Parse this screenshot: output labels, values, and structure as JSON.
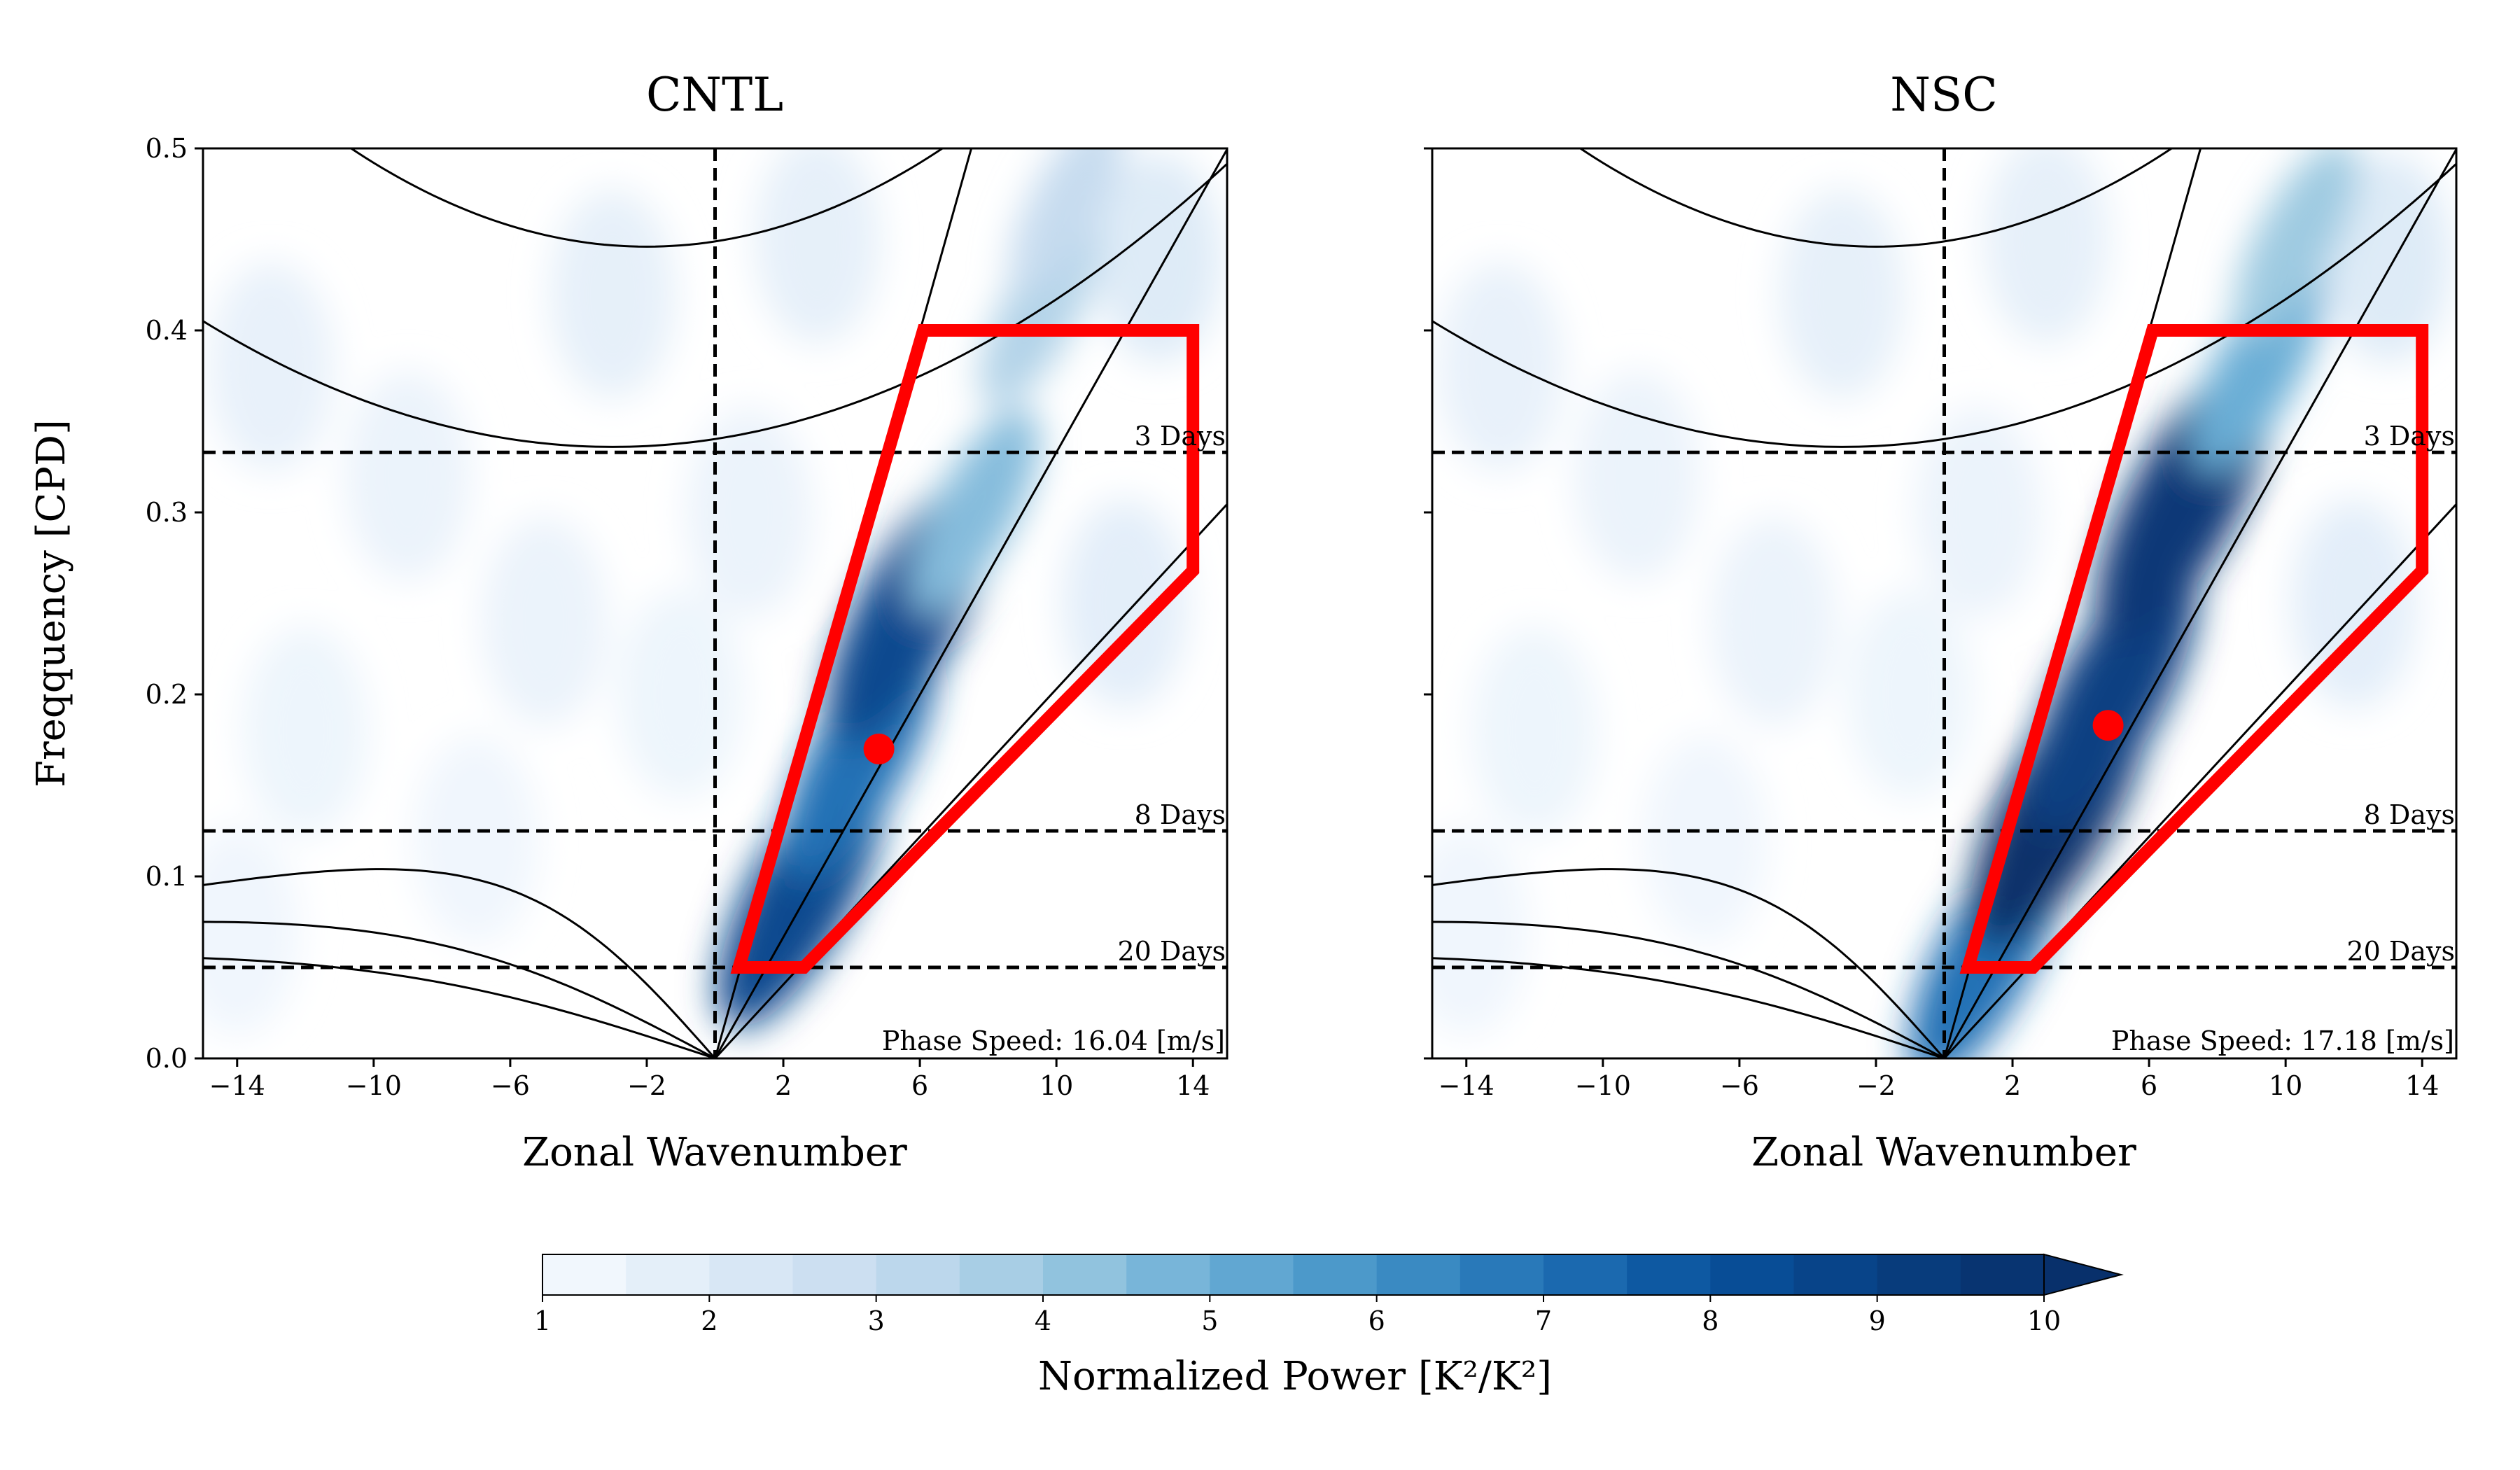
{
  "ylabel": "Freqquency [CPD]",
  "colorbar": {
    "label": "Normalized Power [K²/K²]",
    "ticks": [
      "1",
      "2",
      "3",
      "4",
      "5",
      "6",
      "7",
      "8",
      "9",
      "10"
    ],
    "range": [
      1,
      10
    ],
    "extend": "max",
    "colormap": "Blues"
  },
  "colors": {
    "box": "#ff0000",
    "curves": "#000000",
    "period_lines": "#000000"
  },
  "chart_data": [
    {
      "type": "heatmap",
      "title": "CNTL",
      "xlabel": "Zonal Wavenumber",
      "xlim": [
        -15,
        15
      ],
      "ylim": [
        0,
        0.5
      ],
      "xticks": [
        "−14",
        "−10",
        "−6",
        "−2",
        "2",
        "6",
        "10",
        "14"
      ],
      "yticks": [
        "0.0",
        "0.1",
        "0.2",
        "0.3",
        "0.4",
        "0.5"
      ],
      "period_lines": [
        {
          "label": "3 Days",
          "freq": 0.333
        },
        {
          "label": "8 Days",
          "freq": 0.125
        },
        {
          "label": "20 Days",
          "freq": 0.05
        }
      ],
      "box_polygon_k_freq": [
        [
          0.7,
          0.05
        ],
        [
          2.6,
          0.05
        ],
        [
          14,
          0.268
        ],
        [
          14,
          0.4
        ],
        [
          6.1,
          0.4
        ],
        [
          0.7,
          0.05
        ]
      ],
      "peak_point": {
        "k": 4.8,
        "freq": 0.17
      },
      "phase_speed_text": "Phase Speed: 16.04 [m/s]",
      "power_blobs": [
        {
          "k": 2.5,
          "freq": 0.09,
          "power": 8.5
        },
        {
          "k": 4.2,
          "freq": 0.165,
          "power": 7.0
        },
        {
          "k": 5.7,
          "freq": 0.245,
          "power": 8.5
        },
        {
          "k": 7.6,
          "freq": 0.3,
          "power": 4.5
        },
        {
          "k": 9.5,
          "freq": 0.41,
          "power": 3.5
        },
        {
          "k": 10.3,
          "freq": 0.47,
          "power": 3.0
        }
      ]
    },
    {
      "type": "heatmap",
      "title": "NSC",
      "xlabel": "Zonal Wavenumber",
      "xlim": [
        -15,
        15
      ],
      "ylim": [
        0,
        0.5
      ],
      "xticks": [
        "−14",
        "−10",
        "−6",
        "−2",
        "2",
        "6",
        "10",
        "14"
      ],
      "yticks": [
        "0.0",
        "0.1",
        "0.2",
        "0.3",
        "0.4",
        "0.5"
      ],
      "period_lines": [
        {
          "label": "3 Days",
          "freq": 0.333
        },
        {
          "label": "8 Days",
          "freq": 0.125
        },
        {
          "label": "20 Days",
          "freq": 0.05
        }
      ],
      "box_polygon_k_freq": [
        [
          0.7,
          0.05
        ],
        [
          2.6,
          0.05
        ],
        [
          14,
          0.268
        ],
        [
          14,
          0.4
        ],
        [
          6.1,
          0.4
        ],
        [
          0.7,
          0.05
        ]
      ],
      "peak_point": {
        "k": 4.8,
        "freq": 0.183
      },
      "phase_speed_text": "Phase Speed: 17.18 [m/s]",
      "power_blobs": [
        {
          "k": 1.2,
          "freq": 0.055,
          "power": 7.0
        },
        {
          "k": 3.4,
          "freq": 0.14,
          "power": 10.0
        },
        {
          "k": 4.9,
          "freq": 0.2,
          "power": 9.0
        },
        {
          "k": 7.0,
          "freq": 0.305,
          "power": 9.5
        },
        {
          "k": 9.2,
          "freq": 0.38,
          "power": 5.0
        },
        {
          "k": 10.3,
          "freq": 0.45,
          "power": 4.0
        }
      ]
    }
  ]
}
